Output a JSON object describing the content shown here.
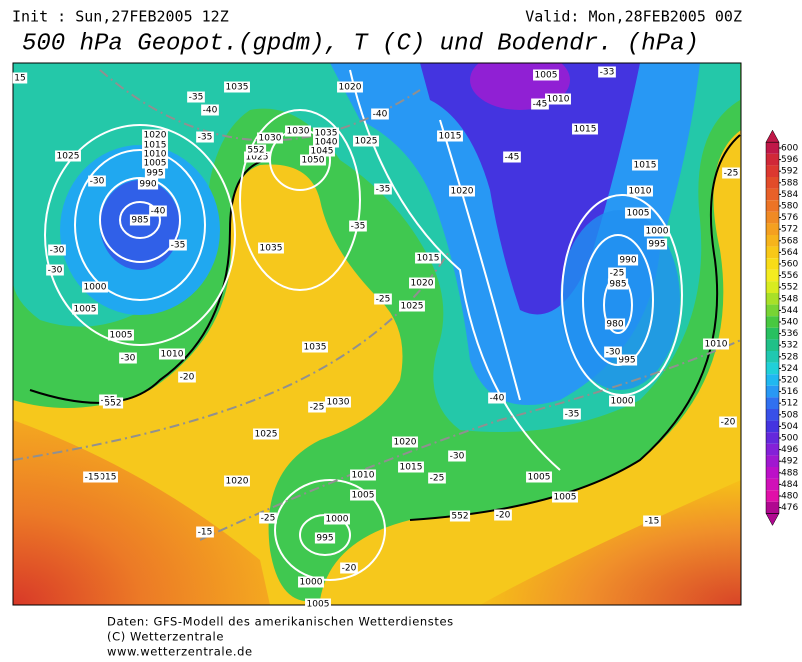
{
  "header": {
    "init": "Init : Sun,27FEB2005 12Z",
    "valid": "Valid: Mon,28FEB2005 00Z",
    "title": "500 hPa Geopot.(gpdm), T (C) und Bodendr. (hPa)"
  },
  "colorbar": {
    "levels": [
      600,
      596,
      592,
      588,
      584,
      580,
      576,
      572,
      568,
      564,
      560,
      556,
      552,
      548,
      544,
      540,
      536,
      532,
      528,
      524,
      520,
      516,
      512,
      508,
      504,
      500,
      496,
      492,
      488,
      484,
      480,
      476
    ],
    "colors": [
      "#c01848",
      "#d02838",
      "#dc3830",
      "#e24c2a",
      "#e86028",
      "#ec7426",
      "#f08a24",
      "#f4a020",
      "#f6b41c",
      "#f8c818",
      "#f8dc18",
      "#f4ec20",
      "#d8ec20",
      "#a8e028",
      "#78d434",
      "#48c840",
      "#28c060",
      "#20c088",
      "#20c8b0",
      "#20d0d8",
      "#20b8f0",
      "#2898f4",
      "#3070f0",
      "#3850e8",
      "#4434e0",
      "#6428dc",
      "#8420d8",
      "#a018d0",
      "#bc10c8",
      "#d010b8",
      "#e010a8",
      "#b00890"
    ]
  },
  "map_labels": [
    "15",
    "1035",
    "1020",
    "1005",
    "1010",
    "1015",
    "1015",
    "1020",
    "1015",
    "1010",
    "1005",
    "995",
    "990",
    "985",
    "1025",
    "1030",
    "1030",
    "1035",
    "1040",
    "1045",
    "1050",
    "1025",
    "1025",
    "1020",
    "1015",
    "1010",
    "1005",
    "1000",
    "995",
    "990",
    "985",
    "980",
    "995",
    "1015",
    "1020",
    "1025",
    "1035",
    "1035",
    "1030",
    "1025",
    "1020",
    "1015",
    "1010",
    "1005",
    "1000",
    "995",
    "1000",
    "1005",
    "1020",
    "1015",
    "1000",
    "1005",
    "1005",
    "1010",
    "1000",
    "1005",
    "1005",
    "1010",
    "-35",
    "-40",
    "-35",
    "-30",
    "-40",
    "-35",
    "-30",
    "-30",
    "-30",
    "-25",
    "-20",
    "-40",
    "-45",
    "-33",
    "-45",
    "-35",
    "-35",
    "-25",
    "-25",
    "-30",
    "-25",
    "-25",
    "-40",
    "-35",
    "-30",
    "-25",
    "-20",
    "-20",
    "-15",
    "-15",
    "-15",
    "-25",
    "-20",
    "552",
    "552",
    "552"
  ],
  "footer": [
    "Daten: GFS-Modell des amerikanischen Wetterdienstes",
    "(C) Wetterzentrale",
    "www.wetterzentrale.de"
  ]
}
